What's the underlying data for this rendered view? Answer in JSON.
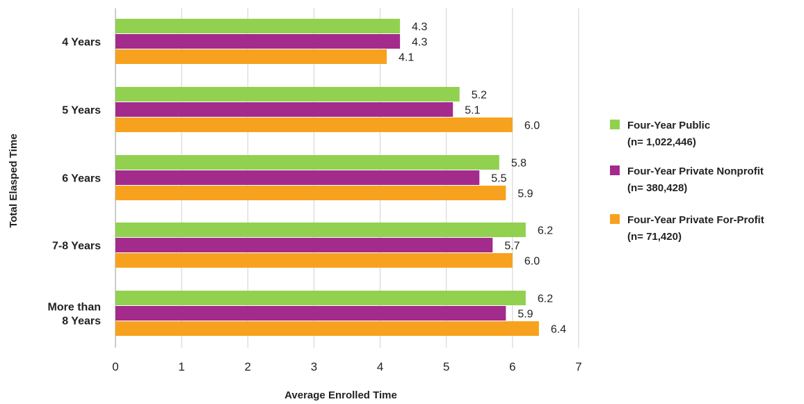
{
  "chart_data": {
    "type": "bar",
    "orientation": "horizontal",
    "xlabel": "Average Enrolled Time",
    "ylabel": "Total Elasped Time",
    "xlim": [
      0,
      7
    ],
    "xticks": [
      0,
      1,
      2,
      3,
      4,
      5,
      6,
      7
    ],
    "grid": "vertical",
    "legend_position": "right",
    "categories": [
      [
        "4 Years"
      ],
      [
        "5 Years"
      ],
      [
        "6 Years"
      ],
      [
        "7-8 Years"
      ],
      [
        "More than",
        "8 Years"
      ]
    ],
    "series": [
      {
        "name": "Four-Year Public",
        "n_label": "(n= 1,022,446)",
        "color": "#92d050",
        "values": [
          4.3,
          5.2,
          5.8,
          6.2,
          6.2
        ],
        "labels": [
          "4.3",
          "5.2",
          "5.8",
          "6.2",
          "6.2"
        ]
      },
      {
        "name": "Four-Year Private Nonprofit",
        "n_label": "(n= 380,428)",
        "color": "#a32b8c",
        "values": [
          4.3,
          5.1,
          5.5,
          5.7,
          5.9
        ],
        "labels": [
          "4.3",
          "5.1",
          "5.5",
          "5.7",
          "5.9"
        ]
      },
      {
        "name": "Four-Year Private For-Profit",
        "n_label": "(n= 71,420)",
        "color": "#f7a21e",
        "values": [
          4.1,
          6.0,
          5.9,
          6.0,
          6.4
        ],
        "labels": [
          "4.1",
          "6.0",
          "5.9",
          "6.0",
          "6.4"
        ]
      }
    ]
  }
}
